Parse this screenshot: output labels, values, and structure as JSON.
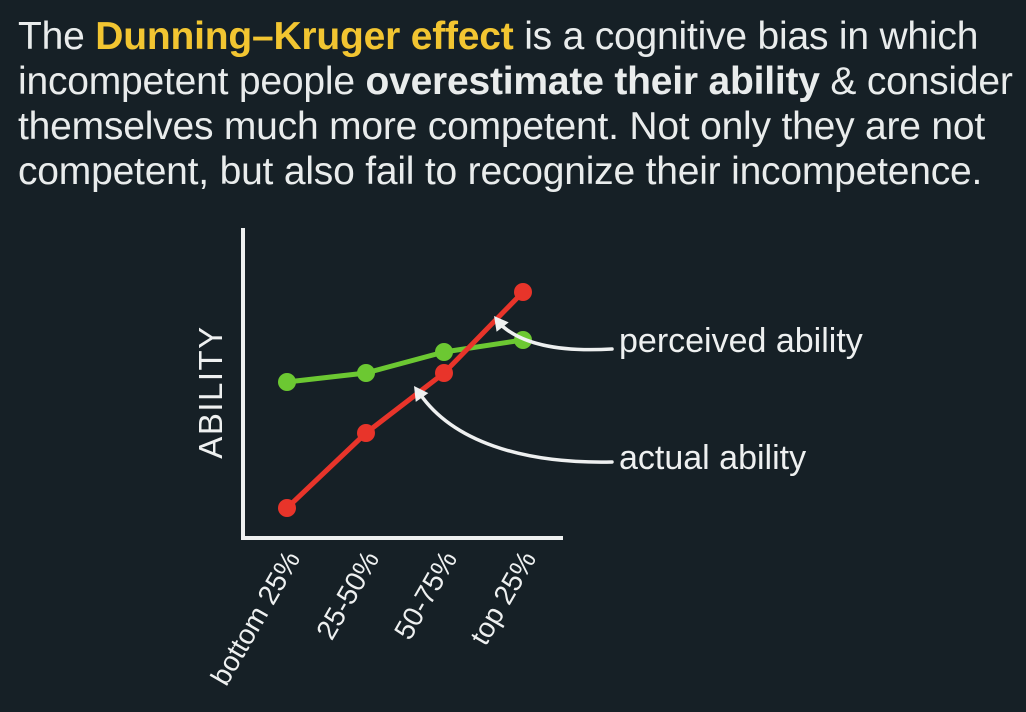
{
  "headline": {
    "part1": "The ",
    "highlight": "Dunning–Kruger effect",
    "part2": " is a cognitive bias in which incompetent people ",
    "emphasis": "overestimate their ability",
    "part3": " & consider themselves much more competent. Not only they are not competent, but also fail to recognize their incompetence."
  },
  "colors": {
    "background": "#162026",
    "highlight": "#f2c531",
    "perceived": "#6cc832",
    "actual": "#e8342a",
    "axis": "#eef0f0"
  },
  "chart_data": {
    "type": "line",
    "categories": [
      "bottom 25%",
      "25-50%",
      "50-75%",
      "top 25%"
    ],
    "ylabel": "ABILITY",
    "xlabel": "",
    "axis_ticks": false,
    "ylim": [
      0,
      100
    ],
    "series": [
      {
        "name": "perceived ability",
        "values": [
          52,
          55,
          62,
          66
        ]
      },
      {
        "name": "actual ability",
        "values": [
          10,
          35,
          55,
          82
        ]
      }
    ]
  }
}
